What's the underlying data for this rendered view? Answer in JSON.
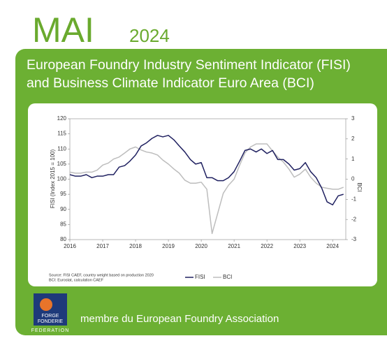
{
  "header": {
    "month": "MAI",
    "year": "2024"
  },
  "chart_data": {
    "type": "line",
    "title": [
      "European Foundry Industry Sentiment Indicator (FISI)",
      "and Business Climate Indicator Euro Area (BCI)"
    ],
    "y_label": "FISI (Index 2015 = 100)",
    "y2_label": "BCI",
    "notes": [
      "Source: FISI CAEF, country weight based on production 2020",
      "BCI: Eurostat, calculation CAEF"
    ],
    "xlim": [
      2016,
      2024.4
    ],
    "xticks": [
      2016,
      2017,
      2018,
      2019,
      2020,
      2021,
      2022,
      2023,
      2024
    ],
    "ylim": [
      80,
      120
    ],
    "yticks": [
      80,
      85,
      90,
      95,
      100,
      105,
      110,
      115,
      120
    ],
    "y2lim": [
      -3,
      3
    ],
    "y2ticks": [
      -3,
      -2,
      -1,
      0,
      1,
      2,
      3
    ],
    "x": [
      2016.0,
      2016.17,
      2016.33,
      2016.5,
      2016.67,
      2016.83,
      2017.0,
      2017.17,
      2017.33,
      2017.5,
      2017.67,
      2017.83,
      2018.0,
      2018.17,
      2018.33,
      2018.5,
      2018.67,
      2018.83,
      2019.0,
      2019.17,
      2019.33,
      2019.5,
      2019.67,
      2019.83,
      2020.0,
      2020.17,
      2020.33,
      2020.5,
      2020.67,
      2020.83,
      2021.0,
      2021.17,
      2021.33,
      2021.5,
      2021.67,
      2021.83,
      2022.0,
      2022.17,
      2022.33,
      2022.5,
      2022.67,
      2022.83,
      2023.0,
      2023.17,
      2023.33,
      2023.5,
      2023.67,
      2023.83,
      2024.0,
      2024.17,
      2024.33
    ],
    "series": [
      {
        "name": "FISI",
        "color": "#1f2060",
        "values": [
          101.5,
          101,
          101,
          101.5,
          100.5,
          101,
          101,
          101.5,
          101.5,
          104,
          104.5,
          106,
          108,
          111,
          112,
          113.5,
          114.5,
          114,
          114.5,
          113,
          111,
          109,
          106.5,
          105,
          105.5,
          100.5,
          100.5,
          99.5,
          99.5,
          100.5,
          102.5,
          106,
          109.5,
          110,
          109,
          110,
          108.5,
          109.5,
          106.5,
          106.5,
          105,
          103,
          103.5,
          105.5,
          102.5,
          100.5,
          97,
          92.5,
          91.5,
          94.5,
          95
        ]
      },
      {
        "name": "BCI",
        "color": "#bdbdbd",
        "axis": "y2",
        "values": [
          0.35,
          0.3,
          0.3,
          0.35,
          0.35,
          0.45,
          0.7,
          0.8,
          1.0,
          1.1,
          1.3,
          1.5,
          1.6,
          1.45,
          1.35,
          1.3,
          1.2,
          0.95,
          0.75,
          0.5,
          0.3,
          -0.05,
          -0.2,
          -0.2,
          -0.15,
          -0.5,
          -2.7,
          -1.7,
          -0.7,
          -0.3,
          0.0,
          0.7,
          1.3,
          1.6,
          1.75,
          1.75,
          1.75,
          1.4,
          1.1,
          0.85,
          0.5,
          0.1,
          0.25,
          0.5,
          0.1,
          -0.2,
          -0.4,
          -0.45,
          -0.5,
          -0.5,
          -0.4
        ]
      }
    ]
  },
  "logo": {
    "line1": "FORGE",
    "line2": "FONDERIE",
    "caption": "FEDERATION"
  },
  "footer": "membre du European Foundry Association"
}
